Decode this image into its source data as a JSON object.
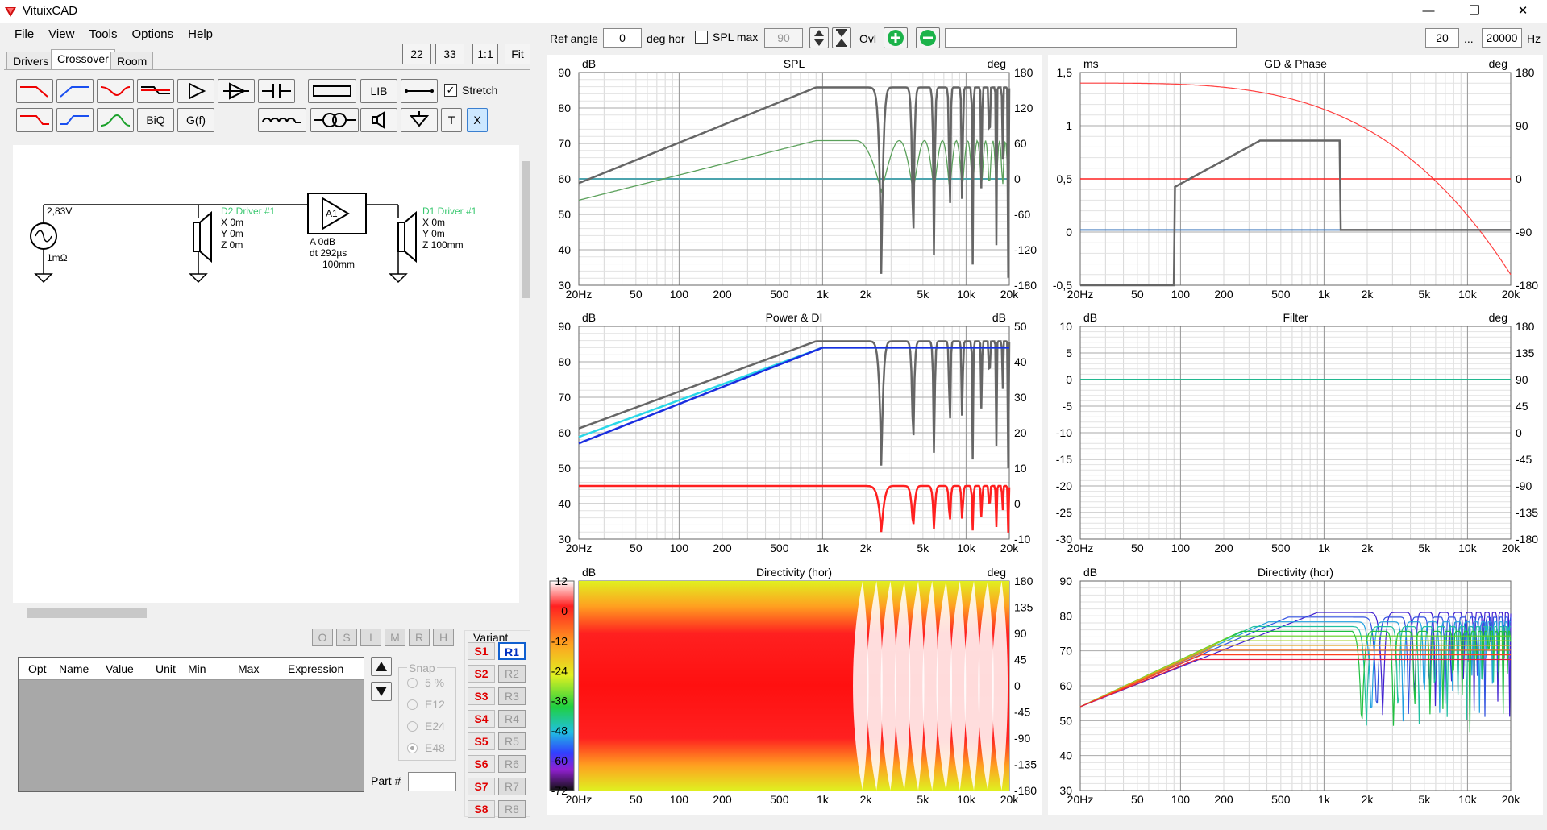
{
  "window": {
    "title": "VituixCAD",
    "minimize": "—",
    "restore": "❐",
    "close": "✕"
  },
  "menu": [
    "File",
    "View",
    "Tools",
    "Options",
    "Help"
  ],
  "tabs": [
    "Drivers",
    "Crossover",
    "Room"
  ],
  "zoom_buttons": [
    "22",
    "33",
    "1:1",
    "Fit"
  ],
  "tool_buttons": {
    "lib": "LIB",
    "biq": "BiQ",
    "gf": "G(f)",
    "t": "T",
    "x": "X",
    "stretch": "Stretch"
  },
  "schematic": {
    "source_voltage": "2,83V",
    "source_resistance": "1mΩ",
    "d2_label": "D2 Driver #1",
    "d2_x": "X 0m",
    "d2_y": "Y 0m",
    "d2_z": "Z 0m",
    "d1_label": "D1 Driver #1",
    "d1_x": "X 0m",
    "d1_y": "Y 0m",
    "d1_z": "Z 100mm",
    "amp_label": "A1",
    "amp_gain": "A  0dB",
    "amp_delay": "dt 292µs",
    "amp_dist": "100mm"
  },
  "opt_buttons": [
    "O",
    "S",
    "I",
    "M",
    "R",
    "H"
  ],
  "variant": {
    "label": "Variant",
    "s": [
      "S1",
      "S2",
      "S3",
      "S4",
      "S5",
      "S6",
      "S7",
      "S8"
    ],
    "r": [
      "R1",
      "R2",
      "R3",
      "R4",
      "R5",
      "R6",
      "R7",
      "R8"
    ]
  },
  "table_headers": [
    "Opt",
    "Name",
    "Value",
    "Unit",
    "Min",
    "Max",
    "Expression"
  ],
  "snap": {
    "label": "Snap",
    "options": [
      "5 %",
      "E12",
      "E24",
      "E48"
    ],
    "selected": "E48"
  },
  "part_label": "Part #",
  "toolbar": {
    "ref_angle_label": "Ref angle",
    "ref_angle": "0",
    "deg_hor": "deg hor",
    "spl_max": "SPL max",
    "spl_max_value": "90",
    "ovl": "Ovl",
    "f_min": "20",
    "ellipsis": "...",
    "f_max": "20000",
    "hz": "Hz"
  },
  "graphs": {
    "spl": {
      "title": "SPL",
      "yl": "dB",
      "yr": "deg",
      "left": [
        "90",
        "80",
        "70",
        "60",
        "50",
        "40",
        "30"
      ],
      "right": [
        "180",
        "120",
        "60",
        "0",
        "-60",
        "-120",
        "-180"
      ]
    },
    "gd": {
      "title": "GD & Phase",
      "yl": "ms",
      "yr": "deg",
      "left": [
        "1,5",
        "1",
        "0,5",
        "0",
        "-0,5"
      ],
      "right": [
        "180",
        "90",
        "0",
        "-90",
        "-180"
      ]
    },
    "power": {
      "title": "Power & DI",
      "yl": "dB",
      "yr": "dB",
      "left": [
        "90",
        "80",
        "70",
        "60",
        "50",
        "40",
        "30"
      ],
      "right": [
        "50",
        "40",
        "30",
        "20",
        "10",
        "0",
        "-10"
      ]
    },
    "filter": {
      "title": "Filter",
      "yl": "dB",
      "yr": "deg",
      "left": [
        "10",
        "5",
        "0",
        "-5",
        "-10",
        "-15",
        "-20",
        "-25",
        "-30"
      ],
      "right": [
        "180",
        "135",
        "90",
        "45",
        "0",
        "-45",
        "-90",
        "-135",
        "-180"
      ]
    },
    "dir1": {
      "title": "Directivity (hor)",
      "yl": "dB",
      "yr": "deg",
      "left": [
        "12",
        "0",
        "-12",
        "-24",
        "-36",
        "-48",
        "-60",
        "-72"
      ],
      "right": [
        "180",
        "135",
        "90",
        "45",
        "0",
        "-45",
        "-90",
        "-135",
        "-180"
      ]
    },
    "dir2": {
      "title": "Directivity (hor)",
      "yl": "dB",
      "yr": "",
      "left": [
        "90",
        "80",
        "70",
        "60",
        "50",
        "40",
        "30"
      ],
      "right": []
    },
    "xticks": [
      "20Hz",
      "50",
      "100",
      "200",
      "500",
      "1k",
      "2k",
      "5k",
      "10k",
      "20k"
    ]
  },
  "colors": {
    "green": "#2ee08a",
    "grey": "#666666",
    "blue_l": "#5b8fc0",
    "red": "#ff2020"
  }
}
